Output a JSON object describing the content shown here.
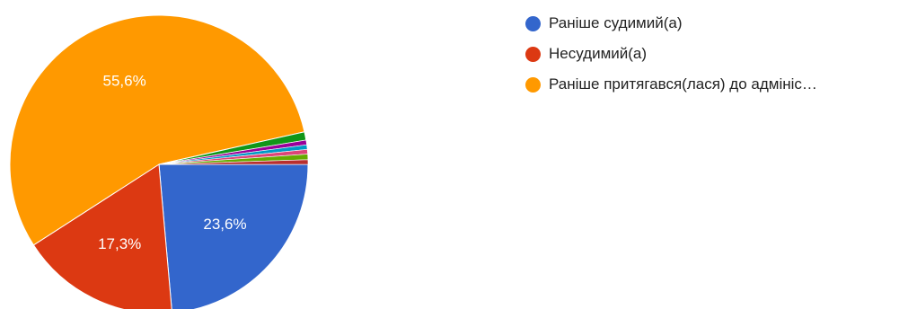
{
  "chart_data": {
    "type": "pie",
    "categories": [
      "Раніше судимий(а)",
      "Несудимий(а)",
      "Раніше притягався(лася) до адмініс…",
      "",
      "",
      "",
      "",
      "",
      ""
    ],
    "values": [
      23.6,
      17.3,
      55.6,
      0.9,
      0.5,
      0.5,
      0.5,
      0.6,
      0.5
    ],
    "data_labels": [
      "23,6%",
      "17,3%",
      "55,6%",
      "",
      "",
      "",
      "",
      "",
      ""
    ],
    "colors": [
      "#3366cc",
      "#dc3912",
      "#ff9900",
      "#109618",
      "#990099",
      "#0099c6",
      "#dd4477",
      "#66aa00",
      "#b82e2e"
    ],
    "start_angle_deg": 0,
    "direction": "clockwise",
    "legend_position": "right",
    "title": ""
  },
  "legend": {
    "items": [
      {
        "label": "Раніше судимий(а)",
        "color": "#3366cc"
      },
      {
        "label": "Несудимий(а)",
        "color": "#dc3912"
      },
      {
        "label": "Раніше притягався(лася) до адмініс…",
        "color": "#ff9900"
      }
    ]
  }
}
